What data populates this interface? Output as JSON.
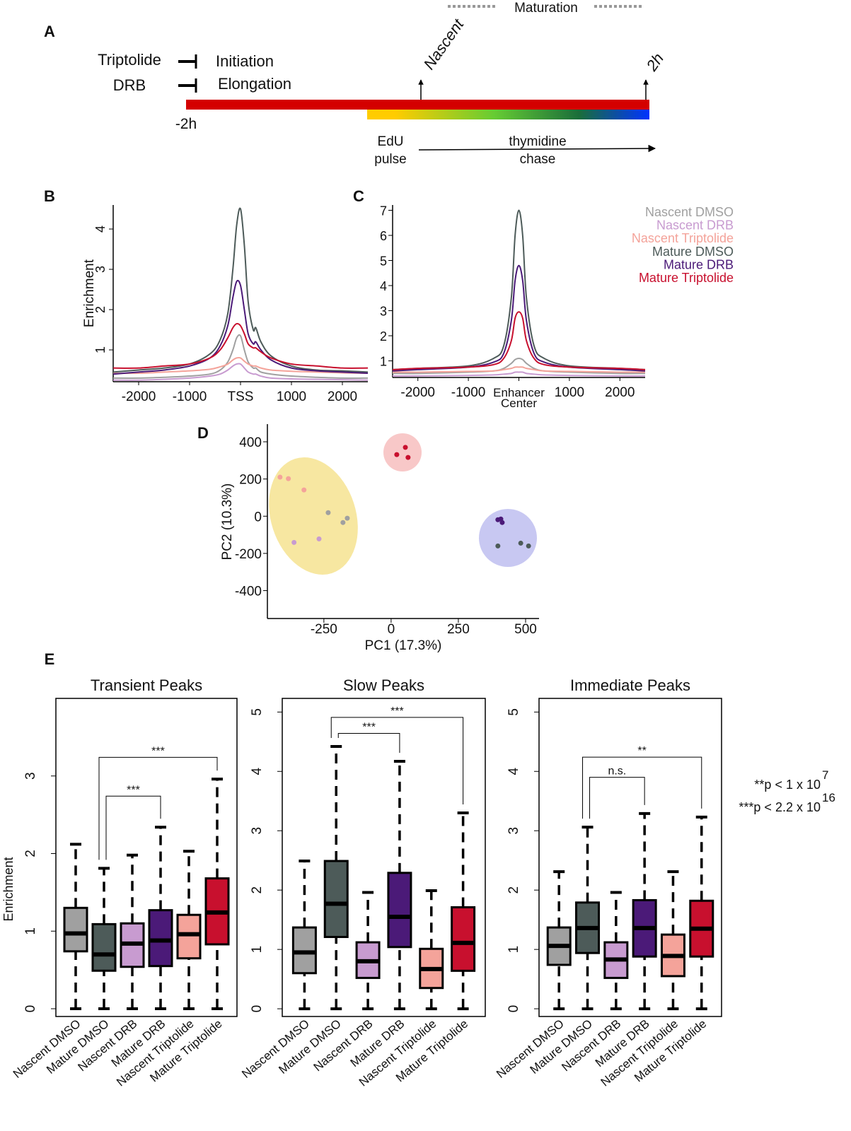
{
  "panel_labels": {
    "a": "A",
    "b": "B",
    "c": "C",
    "d": "D",
    "e": "E"
  },
  "panel_a": {
    "maturation": "Maturation",
    "nascent": "Nascent",
    "end_time": "2h",
    "start_time": "-2h",
    "drug1": "Triptolide",
    "drug1_target": "Initiation",
    "drug2": "DRB",
    "drug2_target": "Elongation",
    "pulse_line1": "EdU",
    "pulse_line2": "pulse",
    "chase_line1": "thymidine",
    "chase_line2": "chase",
    "colors": {
      "drug_bar": "#d40000",
      "gradient": [
        "#ffcc00",
        "#66cc33",
        "#1a6e3a",
        "#0033ff"
      ]
    }
  },
  "legend": {
    "items": [
      {
        "label": "Nascent DMSO",
        "color": "#a0a0a0"
      },
      {
        "label": "Nascent DRB",
        "color": "#c89bd0"
      },
      {
        "label": "Nascent Triptolide",
        "color": "#f4a39a"
      },
      {
        "label": "Mature DMSO",
        "color": "#4d5b59"
      },
      {
        "label": "Mature DRB",
        "color": "#4b1a78"
      },
      {
        "label": "Mature Triptolide",
        "color": "#c8102e"
      }
    ]
  },
  "chart_data": [
    {
      "id": "B",
      "type": "line",
      "xlabel": "",
      "ylabel": "Enrichment",
      "xlim": [
        -2500,
        2500
      ],
      "ylim": [
        0,
        4.5
      ],
      "xticks": [
        {
          "v": -2000,
          "label": "-2000"
        },
        {
          "v": -1000,
          "label": "-1000"
        },
        {
          "v": 0,
          "label": "TSS"
        },
        {
          "v": 1000,
          "label": "1000"
        },
        {
          "v": 2000,
          "label": "2000"
        }
      ],
      "yticks": [
        1,
        2,
        3,
        4
      ],
      "x": [
        -2500,
        -2000,
        -1500,
        -1000,
        -600,
        -400,
        -250,
        -150,
        -75,
        0,
        75,
        150,
        250,
        300,
        400,
        600,
        1000,
        1500,
        2000,
        2500
      ],
      "series": [
        {
          "name": "Nascent DMSO",
          "values": [
            0.3,
            0.3,
            0.32,
            0.35,
            0.4,
            0.5,
            0.7,
            1.0,
            1.3,
            1.35,
            1.0,
            0.7,
            0.55,
            0.55,
            0.45,
            0.4,
            0.35,
            0.32,
            0.3,
            0.3
          ]
        },
        {
          "name": "Nascent DRB",
          "values": [
            0.25,
            0.25,
            0.27,
            0.3,
            0.35,
            0.4,
            0.5,
            0.6,
            0.65,
            0.65,
            0.55,
            0.45,
            0.4,
            0.4,
            0.35,
            0.3,
            0.28,
            0.27,
            0.26,
            0.25
          ]
        },
        {
          "name": "Nascent Triptolide",
          "values": [
            0.42,
            0.42,
            0.45,
            0.48,
            0.52,
            0.58,
            0.65,
            0.75,
            0.8,
            0.8,
            0.72,
            0.65,
            0.6,
            0.6,
            0.55,
            0.5,
            0.47,
            0.45,
            0.43,
            0.42
          ]
        },
        {
          "name": "Mature DMSO",
          "values": [
            0.45,
            0.5,
            0.55,
            0.65,
            0.9,
            1.25,
            1.9,
            3.0,
            4.1,
            4.5,
            3.6,
            2.2,
            1.5,
            1.55,
            1.2,
            0.85,
            0.6,
            0.5,
            0.48,
            0.45
          ]
        },
        {
          "name": "Mature DRB",
          "values": [
            0.4,
            0.45,
            0.5,
            0.6,
            0.8,
            1.1,
            1.6,
            2.3,
            2.7,
            2.6,
            2.0,
            1.4,
            1.15,
            1.2,
            1.0,
            0.75,
            0.55,
            0.48,
            0.45,
            0.42
          ]
        },
        {
          "name": "Mature Triptolide",
          "values": [
            0.55,
            0.55,
            0.6,
            0.65,
            0.8,
            1.0,
            1.3,
            1.55,
            1.65,
            1.6,
            1.4,
            1.15,
            1.05,
            1.05,
            0.95,
            0.8,
            0.65,
            0.6,
            0.55,
            0.55
          ]
        }
      ]
    },
    {
      "id": "C",
      "type": "line",
      "xlabel": "",
      "ylabel": "",
      "xlim": [
        -2500,
        2500
      ],
      "ylim": [
        0,
        7
      ],
      "xticks": [
        {
          "v": -2000,
          "label": "-2000"
        },
        {
          "v": -1000,
          "label": "-1000"
        },
        {
          "v": 0,
          "label": "Enhancer"
        },
        {
          "v": 1000,
          "label": "1000"
        },
        {
          "v": 2000,
          "label": "2000"
        }
      ],
      "xtick_center_line2": "Center",
      "yticks": [
        1,
        2,
        3,
        4,
        5,
        6,
        7
      ],
      "x": [
        -2500,
        -2000,
        -1000,
        -500,
        -300,
        -150,
        -75,
        0,
        75,
        150,
        300,
        500,
        1000,
        2000,
        2500
      ],
      "series": [
        {
          "name": "Nascent DMSO",
          "values": [
            0.5,
            0.5,
            0.55,
            0.6,
            0.7,
            0.9,
            1.05,
            1.1,
            1.05,
            0.9,
            0.7,
            0.6,
            0.55,
            0.5,
            0.5
          ]
        },
        {
          "name": "Nascent DRB",
          "values": [
            0.4,
            0.4,
            0.42,
            0.44,
            0.47,
            0.5,
            0.55,
            0.55,
            0.55,
            0.5,
            0.47,
            0.44,
            0.42,
            0.4,
            0.4
          ]
        },
        {
          "name": "Nascent Triptolide",
          "values": [
            0.55,
            0.55,
            0.58,
            0.6,
            0.65,
            0.7,
            0.75,
            0.75,
            0.75,
            0.7,
            0.65,
            0.6,
            0.58,
            0.55,
            0.55
          ]
        },
        {
          "name": "Mature DMSO",
          "values": [
            0.65,
            0.7,
            0.8,
            1.1,
            1.6,
            3.5,
            6.0,
            7.0,
            6.0,
            3.5,
            1.6,
            1.1,
            0.8,
            0.7,
            0.65
          ]
        },
        {
          "name": "Mature DRB",
          "values": [
            0.6,
            0.65,
            0.75,
            0.95,
            1.3,
            2.6,
            4.2,
            4.8,
            4.2,
            2.6,
            1.3,
            0.95,
            0.75,
            0.65,
            0.6
          ]
        },
        {
          "name": "Mature Triptolide",
          "values": [
            0.65,
            0.7,
            0.75,
            0.85,
            1.1,
            1.8,
            2.7,
            2.95,
            2.7,
            1.8,
            1.1,
            0.85,
            0.75,
            0.7,
            0.65
          ]
        }
      ]
    },
    {
      "id": "D",
      "type": "scatter",
      "xlabel": "PC1 (17.3%)",
      "ylabel": "PC2 (10.3%)",
      "xlim": [
        -460,
        550
      ],
      "ylim": [
        -550,
        495
      ],
      "xticks": [
        -250,
        0,
        250,
        500
      ],
      "yticks": [
        400,
        200,
        0,
        -200,
        -400
      ],
      "cluster_colors": [
        "#f7e7a1",
        "#f8c8c8",
        "#c8c8f2"
      ],
      "points": [
        {
          "group": "Nascent Triptolide",
          "x": -413,
          "y": 210
        },
        {
          "group": "Nascent Triptolide",
          "x": -382,
          "y": 202
        },
        {
          "group": "Nascent Triptolide",
          "x": -324,
          "y": 141
        },
        {
          "group": "Nascent DMSO",
          "x": -234,
          "y": 19
        },
        {
          "group": "Nascent DMSO",
          "x": -179,
          "y": -34
        },
        {
          "group": "Nascent DMSO",
          "x": -163,
          "y": -11
        },
        {
          "group": "Nascent DRB",
          "x": -361,
          "y": -141
        },
        {
          "group": "Nascent DRB",
          "x": -268,
          "y": -122
        },
        {
          "group": "Mature Triptolide",
          "x": 21,
          "y": 331
        },
        {
          "group": "Mature Triptolide",
          "x": 53,
          "y": 370
        },
        {
          "group": "Mature Triptolide",
          "x": 63,
          "y": 316
        },
        {
          "group": "Mature DRB",
          "x": 397,
          "y": -19
        },
        {
          "group": "Mature DRB",
          "x": 408,
          "y": -15
        },
        {
          "group": "Mature DRB",
          "x": 413,
          "y": -34
        },
        {
          "group": "Mature DMSO",
          "x": 397,
          "y": -160
        },
        {
          "group": "Mature DMSO",
          "x": 482,
          "y": -145
        },
        {
          "group": "Mature DMSO",
          "x": 511,
          "y": -160
        }
      ]
    },
    {
      "id": "E",
      "type": "box",
      "ylabel": "Enrichment",
      "categories": [
        "Nascent DMSO",
        "Mature DMSO",
        "Nascent DRB",
        "Mature DRB",
        "Nascent Triptolide",
        "Mature Triptolide"
      ],
      "colors": [
        "#a0a0a0",
        "#4d5b59",
        "#c89bd0",
        "#4b1a78",
        "#f4a39a",
        "#c8102e"
      ],
      "panels": [
        {
          "title": "Transient Peaks",
          "ylim": [
            -0.1,
            4.0
          ],
          "yticks": [
            0,
            1,
            2,
            3
          ],
          "boxes": [
            [
              0,
              0.74,
              0.97,
              1.3,
              2.12
            ],
            [
              0,
              0.49,
              0.7,
              1.09,
              1.81
            ],
            [
              0,
              0.54,
              0.84,
              1.1,
              1.98
            ],
            [
              0,
              0.55,
              0.88,
              1.27,
              2.34
            ],
            [
              0,
              0.65,
              0.96,
              1.21,
              2.03
            ],
            [
              0,
              0.83,
              1.24,
              1.68,
              2.96
            ]
          ],
          "brackets": [
            {
              "from": 1,
              "to": 5,
              "label": "***",
              "y": 3.24
            },
            {
              "from": 1,
              "to": 3,
              "label": "***",
              "y": 2.74
            }
          ]
        },
        {
          "title": "Slow Peaks",
          "ylim": [
            -0.13,
            5.23
          ],
          "yticks": [
            0,
            1,
            2,
            3,
            4,
            5
          ],
          "boxes": [
            [
              0,
              0.6,
              0.95,
              1.37,
              2.49
            ],
            [
              0,
              1.21,
              1.77,
              2.49,
              4.42
            ],
            [
              0,
              0.52,
              0.8,
              1.12,
              1.96
            ],
            [
              0,
              1.04,
              1.55,
              2.29,
              4.17
            ],
            [
              0,
              0.35,
              0.67,
              1.01,
              1.99
            ],
            [
              0,
              0.64,
              1.11,
              1.71,
              3.3
            ]
          ],
          "brackets": [
            {
              "from": 1,
              "to": 5,
              "label": "***",
              "y": 4.91
            },
            {
              "from": 1,
              "to": 3,
              "label": "***",
              "y": 4.64
            }
          ]
        },
        {
          "title": "Immediate Peaks",
          "ylim": [
            -0.13,
            5.23
          ],
          "yticks": [
            0,
            1,
            2,
            3,
            4,
            5
          ],
          "boxes": [
            [
              0,
              0.74,
              1.06,
              1.37,
              2.31
            ],
            [
              0,
              0.94,
              1.36,
              1.79,
              3.06
            ],
            [
              0,
              0.52,
              0.83,
              1.12,
              1.96
            ],
            [
              0,
              0.88,
              1.36,
              1.83,
              3.29
            ],
            [
              0,
              0.55,
              0.89,
              1.25,
              2.31
            ],
            [
              0,
              0.88,
              1.35,
              1.82,
              3.23
            ]
          ],
          "brackets": [
            {
              "from": 1,
              "to": 5,
              "label": "**",
              "y": 4.24
            },
            {
              "from": 1,
              "to": 3,
              "label": "n.s.",
              "y": 3.9
            }
          ]
        }
      ],
      "pvalues": [
        {
          "text": "**p < 1 x 10",
          "exp": "7"
        },
        {
          "text": "***p < 2.2 x 10",
          "exp": "16"
        }
      ]
    }
  ]
}
